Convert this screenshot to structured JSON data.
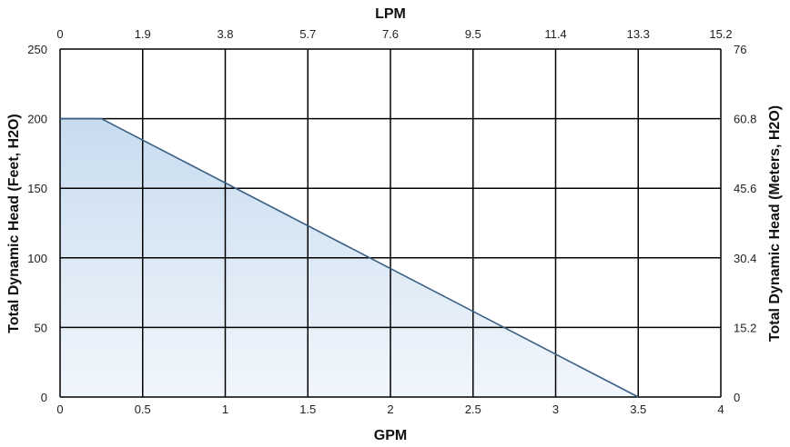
{
  "chart_data": {
    "type": "area",
    "xlabel": "GPM",
    "x2label": "LPM",
    "ylabel": "Total Dynamic Head (Feet, H2O)",
    "y2label": "Total Dynamic Head (Meters, H2O)",
    "xlim": [
      0,
      4
    ],
    "ylim": [
      0,
      250
    ],
    "x_ticks": [
      "0",
      "0.5",
      "1",
      "1.5",
      "2",
      "2.5",
      "3",
      "3.5",
      "4"
    ],
    "x2_ticks": [
      "0",
      "1.9",
      "3.8",
      "5.7",
      "7.6",
      "9.5",
      "11.4",
      "13.3",
      "15.2"
    ],
    "y_ticks": [
      "0",
      "50",
      "100",
      "150",
      "200",
      "250"
    ],
    "y2_ticks": [
      "0",
      "15.2",
      "30.4",
      "45.6",
      "60.8",
      "76"
    ],
    "grid": true,
    "series": [
      {
        "x": [
          0,
          0.25,
          3.5
        ],
        "y": [
          200,
          200,
          0
        ]
      }
    ],
    "colors": {
      "line": "#3a5f85",
      "fill_top": "#c8dcef",
      "fill_bottom": "#f1f6fc",
      "grid": "#000000"
    }
  }
}
